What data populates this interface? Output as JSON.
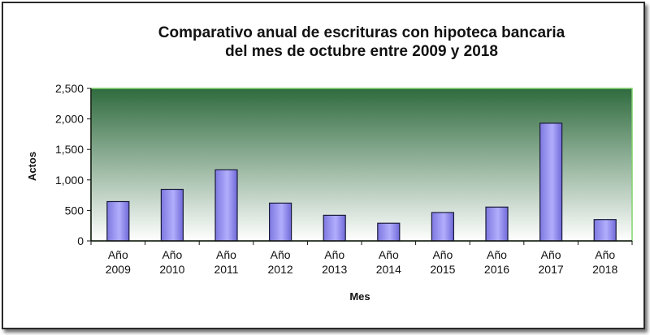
{
  "chart_data": {
    "type": "bar",
    "title": [
      "Comparativo anual de escrituras con hipoteca bancaria",
      "del mes de octubre entre 2009 y 2018"
    ],
    "xlabel": "Mes",
    "ylabel": "Actos",
    "categories": [
      [
        "Año",
        "2009"
      ],
      [
        "Año",
        "2010"
      ],
      [
        "Año",
        "2011"
      ],
      [
        "Año",
        "2012"
      ],
      [
        "Año",
        "2013"
      ],
      [
        "Año",
        "2014"
      ],
      [
        "Año",
        "2015"
      ],
      [
        "Año",
        "2016"
      ],
      [
        "Año",
        "2017"
      ],
      [
        "Año",
        "2018"
      ]
    ],
    "values": [
      645,
      845,
      1165,
      620,
      420,
      290,
      465,
      555,
      1930,
      350
    ],
    "ylim": [
      0,
      2500
    ],
    "yticks": [
      0,
      500,
      1000,
      1500,
      2000,
      2500
    ],
    "ytick_labels": [
      "0",
      "500",
      "1,000",
      "1,500",
      "2,000",
      "2,500"
    ],
    "grid": false,
    "legend": "none",
    "colors": {
      "bar_fill": "#9b96f4",
      "bar_stroke": "#1a1a3a",
      "plot_bg_top": "#2f6b3e",
      "plot_bg_bottom": "#ffffff",
      "plot_border": "#7fd36a",
      "axis": "#111111"
    }
  }
}
